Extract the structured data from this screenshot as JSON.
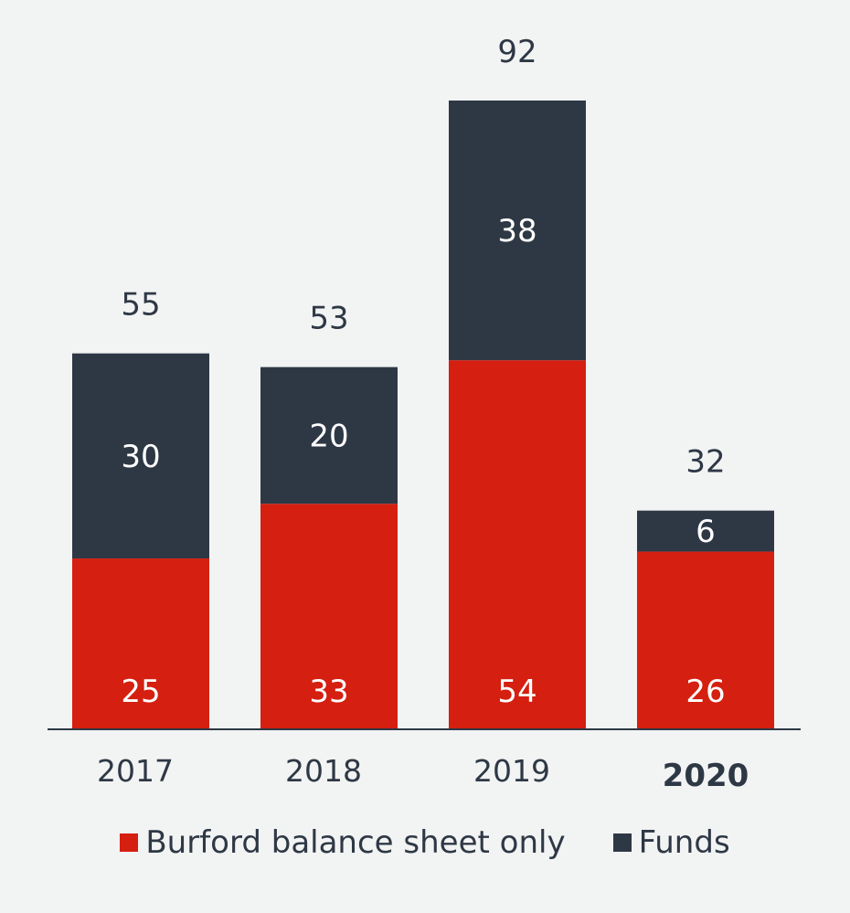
{
  "chart_data": {
    "type": "bar",
    "stacked": true,
    "categories": [
      "2017",
      "2018",
      "2019",
      "2020"
    ],
    "series": [
      {
        "name": "Burford balance sheet only",
        "values": [
          25,
          33,
          54,
          26
        ],
        "color": "#d51f10"
      },
      {
        "name": "Funds",
        "values": [
          30,
          20,
          38,
          6
        ],
        "color": "#2e3845"
      }
    ],
    "totals": [
      55,
      53,
      92,
      32
    ],
    "ylim": [
      0,
      92
    ],
    "grid": false,
    "legend_position": "bottom",
    "bold_categories": [
      "2020"
    ]
  }
}
